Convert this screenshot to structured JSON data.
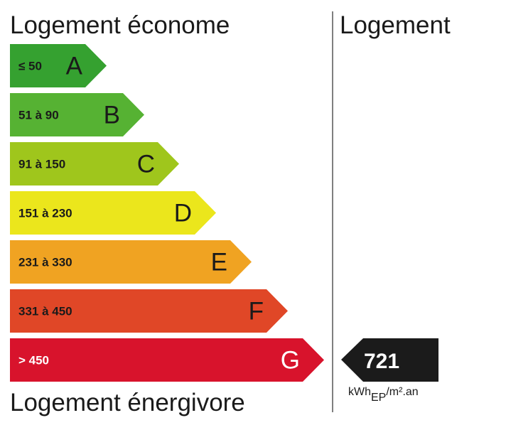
{
  "header": {
    "left": "Logement économe",
    "right": "Logement"
  },
  "classes": [
    {
      "range": "≤ 50",
      "letter": "A",
      "color": "#35a130"
    },
    {
      "range": "51 à 90",
      "letter": "B",
      "color": "#56b233"
    },
    {
      "range": "91 à 150",
      "letter": "C",
      "color": "#9fc61c"
    },
    {
      "range": "151 à 230",
      "letter": "D",
      "color": "#ebe61c"
    },
    {
      "range": "231 à 330",
      "letter": "E",
      "color": "#f0a322"
    },
    {
      "range": "331 à 450",
      "letter": "F",
      "color": "#e04727"
    },
    {
      "range": "> 450",
      "letter": "G",
      "color": "#d8132c"
    }
  ],
  "footer": "Logement énergivore",
  "value": {
    "number": 721,
    "unit": "kWh",
    "unit_sub": "EP",
    "unit_rest": "/m².an"
  }
}
